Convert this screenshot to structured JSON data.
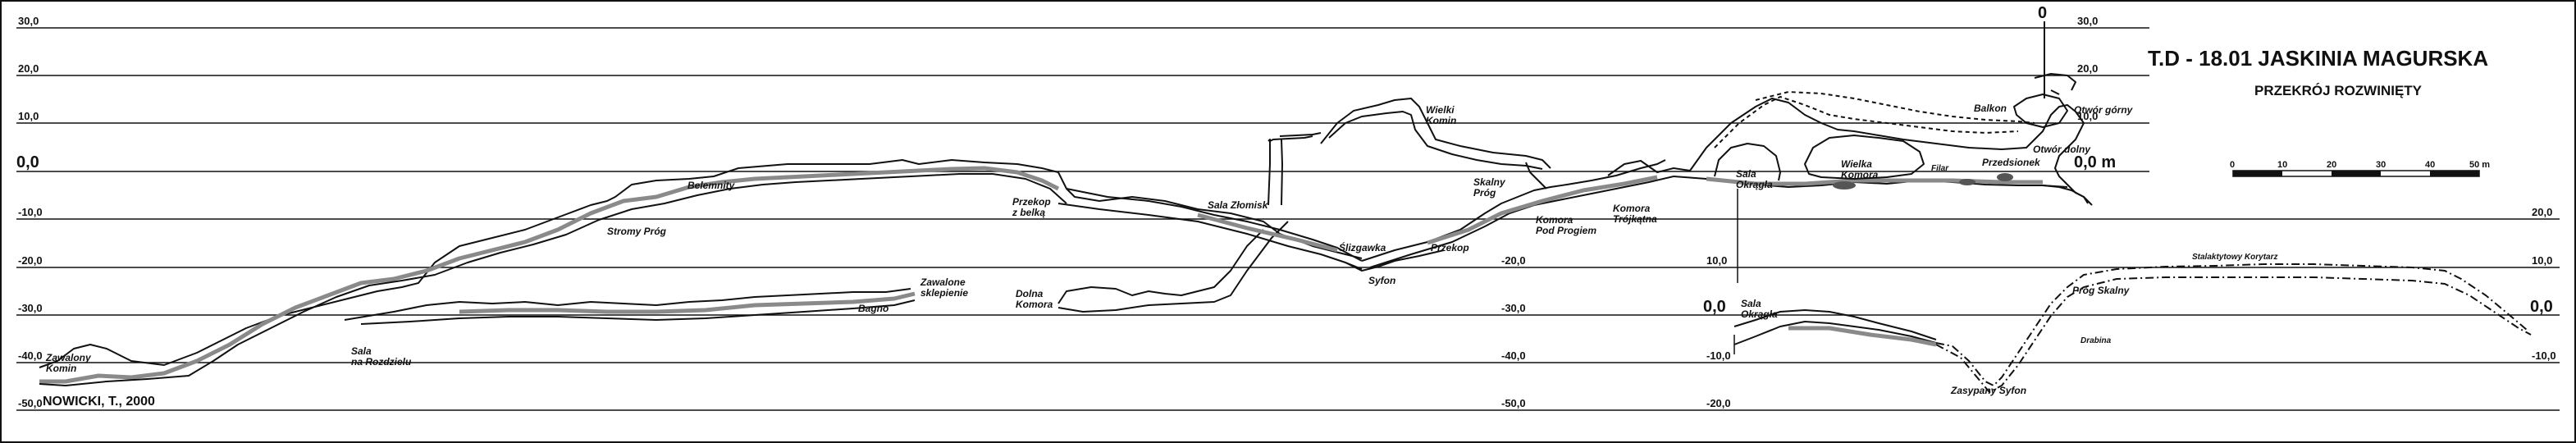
{
  "title": {
    "main": "T.D - 18.01  JASKINIA MAGURSKA",
    "sub": "PRZEKRÓJ  ROZWINIĘTY"
  },
  "author": "NOWICKI, T., 2000",
  "levels": {
    "left": [
      "30,0",
      "20,0",
      "10,0",
      "0,0",
      "-10,0",
      "-20,0",
      "-30,0",
      "-40,0",
      "-50,0"
    ],
    "middle": [
      "-20,0",
      "-30,0",
      "-40,0",
      "-50,0"
    ],
    "right_top": [
      "30,0",
      "20,0",
      "10,0",
      "0,0 m"
    ],
    "inset": [
      "20,0",
      "10,0",
      "0,0",
      "-10,0",
      "-20,0"
    ],
    "inset_right": [
      "20,0",
      "10,0",
      "0,0",
      "-10,0"
    ]
  },
  "zero_marker": "0",
  "scale_bar": {
    "ticks": [
      "0",
      "10",
      "20",
      "30",
      "40",
      "50 m"
    ]
  },
  "labels": {
    "zawalony_komin": "Zawalony\nKomin",
    "sala_rozdzielu": "Sala\nna Rozdzielu",
    "stromy_prog": "Stromy Próg",
    "belemnity": "Belemnity",
    "bagno": "Bagno",
    "zawalone_sklepienie": "Zawalone\nsklepienie",
    "dolna_komora": "Dolna\nKomora",
    "przekop_z_belka": "Przekop\nz belką",
    "sala_zlomisk": "Sala Złomisk",
    "slizgawka": "Ślizgawka",
    "syfon": "Syfon",
    "przekop": "Przekop",
    "wielki_komin": "Wielki\nKomin",
    "skalny_prog": "Skalny\nPróg",
    "komora_pod_progiem": "Komora\nPod Progiem",
    "komora_trojkatna": "Komora\nTrójkątna",
    "sala_okragla": "Sala\nOkrągła",
    "wielka_komora": "Wielka\nKomora",
    "filar": "Filar",
    "przedsionek": "Przedsionek",
    "balkon": "Balkon",
    "otwor_gorny": "Otwór górny",
    "otwor_dolny": "Otwór dolny",
    "sala_okragla_inset": "Sala\nOkrągła",
    "stalaktytowy_korytarz": "Stalaktytowy Korytarz",
    "prog_skalny": "Próg Skalny",
    "drabina": "Drabina",
    "zasypany_syfon": "Zasypany Syfon"
  }
}
